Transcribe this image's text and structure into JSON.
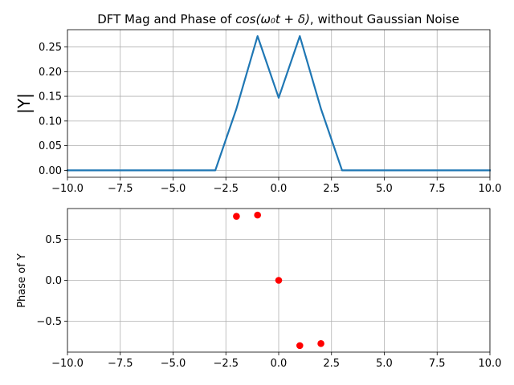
{
  "chart_data": [
    {
      "type": "line",
      "title_plain": "DFT Mag and Phase of ",
      "title_math": "cos(ω₀t + δ)",
      "title_suffix": ", without Gaussian Noise",
      "xlabel": "",
      "ylabel": "|Y|",
      "xlim": [
        -10,
        10
      ],
      "ylim": [
        -0.014,
        0.285
      ],
      "xticks": [
        "−10.0",
        "−7.5",
        "−5.0",
        "−2.5",
        "0.0",
        "2.5",
        "5.0",
        "7.5",
        "10.0"
      ],
      "xtick_values": [
        -10,
        -7.5,
        -5,
        -2.5,
        0,
        2.5,
        5,
        7.5,
        10
      ],
      "yticks": [
        "0.00",
        "0.05",
        "0.10",
        "0.15",
        "0.20",
        "0.25"
      ],
      "ytick_values": [
        0,
        0.05,
        0.1,
        0.15,
        0.2,
        0.25
      ],
      "grid": true,
      "series": [
        {
          "color": "#1f77b4",
          "x": [
            -10,
            -9,
            -8,
            -7,
            -6,
            -5,
            -4,
            -3,
            -2,
            -1,
            0,
            1,
            2,
            3,
            4,
            5,
            6,
            7,
            8,
            9,
            10
          ],
          "y": [
            0,
            0,
            0,
            0,
            0,
            0,
            0,
            0,
            0.125,
            0.272,
            0.147,
            0.272,
            0.125,
            0,
            0,
            0,
            0,
            0,
            0,
            0,
            0
          ]
        }
      ]
    },
    {
      "type": "scatter",
      "xlabel": "",
      "ylabel": "Phase of Y",
      "xlim": [
        -10,
        10
      ],
      "ylim": [
        -0.88,
        0.88
      ],
      "xticks": [
        "−10.0",
        "−7.5",
        "−5.0",
        "−2.5",
        "0.0",
        "2.5",
        "5.0",
        "7.5",
        "10.0"
      ],
      "xtick_values": [
        -10,
        -7.5,
        -5,
        -2.5,
        0,
        2.5,
        5,
        7.5,
        10
      ],
      "yticks": [
        "−0.5",
        "0.0",
        "0.5"
      ],
      "ytick_values": [
        -0.5,
        0,
        0.5
      ],
      "grid": true,
      "series": [
        {
          "color": "#ff0000",
          "x": [
            -2,
            -1,
            0,
            1,
            2
          ],
          "y": [
            0.785,
            0.8,
            0.0,
            -0.8,
            -0.775
          ]
        }
      ]
    }
  ]
}
